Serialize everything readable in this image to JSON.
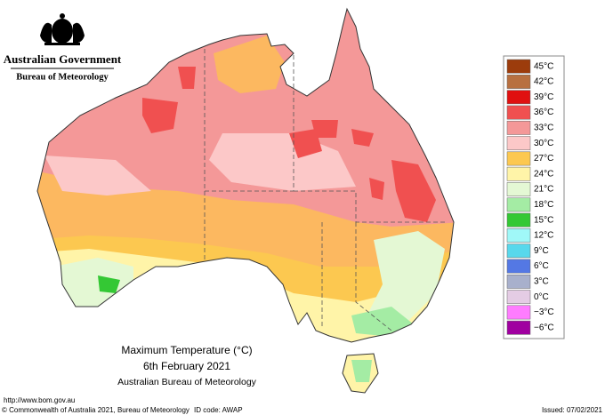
{
  "header": {
    "government": "Australian Government",
    "bureau": "Bureau of Meteorology"
  },
  "legend": [
    {
      "label": "45°C",
      "color": "#9c3c0c"
    },
    {
      "label": "42°C",
      "color": "#b87040"
    },
    {
      "label": "39°C",
      "color": "#e01010"
    },
    {
      "label": "36°C",
      "color": "#f05050"
    },
    {
      "label": "33°C",
      "color": "#f49898"
    },
    {
      "label": "30°C",
      "color": "#fcc8c8"
    },
    {
      "label": "27°C",
      "color": "#fcc850"
    },
    {
      "label": "24°C",
      "color": "#fff4a8"
    },
    {
      "label": "21°C",
      "color": "#e4f8d4"
    },
    {
      "label": "18°C",
      "color": "#a4eca4"
    },
    {
      "label": "15°C",
      "color": "#34c834"
    },
    {
      "label": "12°C",
      "color": "#a0f8f8"
    },
    {
      "label": "9°C",
      "color": "#58d8ec"
    },
    {
      "label": "6°C",
      "color": "#5478e4"
    },
    {
      "label": "3°C",
      "color": "#a8b0cc"
    },
    {
      "label": "0°C",
      "color": "#e4cce4"
    },
    {
      "label": "−3°C",
      "color": "#ff7cff"
    },
    {
      "label": "−6°C",
      "color": "#a000a0"
    }
  ],
  "map_title": {
    "line1": "Maximum Temperature (°C)",
    "line2": "6th February 2021",
    "line3": "Australian Bureau of Meteorology"
  },
  "footer": {
    "url": "http://www.bom.gov.au",
    "copyright": "© Commonwealth of Australia 2021, Bureau of Meteorology",
    "id_code": "ID code: AWAP",
    "issued": "Issued: 07/02/2021"
  }
}
